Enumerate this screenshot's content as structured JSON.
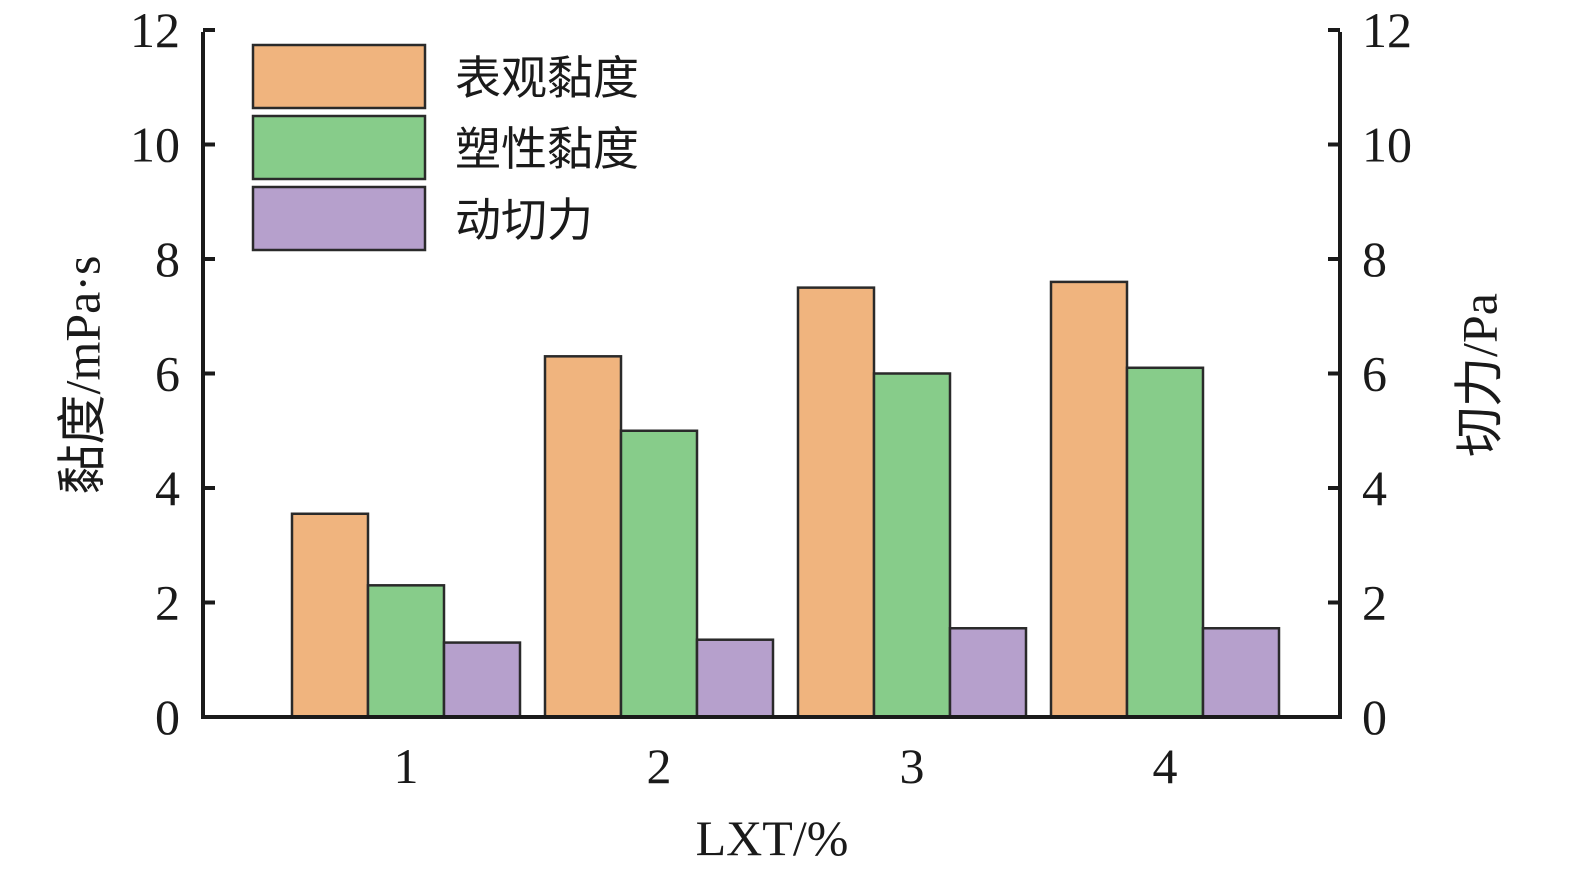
{
  "chart_data": {
    "type": "bar",
    "categories": [
      "1",
      "2",
      "3",
      "4"
    ],
    "series": [
      {
        "name": "表观黏度",
        "values": [
          3.55,
          6.3,
          7.5,
          7.6
        ],
        "color": "#f0b47e",
        "axis": "left"
      },
      {
        "name": "塑性黏度",
        "values": [
          2.3,
          5.0,
          6.0,
          6.1
        ],
        "color": "#87cc8a",
        "axis": "left"
      },
      {
        "name": "动切力",
        "values": [
          1.3,
          1.35,
          1.55,
          1.55
        ],
        "color": "#b6a0cc",
        "axis": "right"
      }
    ],
    "xlabel": "LXT/%",
    "ylabel": "黏度/mPa·s",
    "y2label": "切力/Pa",
    "ylim": [
      0,
      12
    ],
    "y2lim": [
      0,
      12
    ],
    "yticks": [
      "0",
      "2",
      "4",
      "6",
      "8",
      "10",
      "12"
    ],
    "y2ticks": [
      "0",
      "2",
      "4",
      "6",
      "8",
      "10",
      "12"
    ],
    "grid": false,
    "legend_position": "top-left"
  }
}
